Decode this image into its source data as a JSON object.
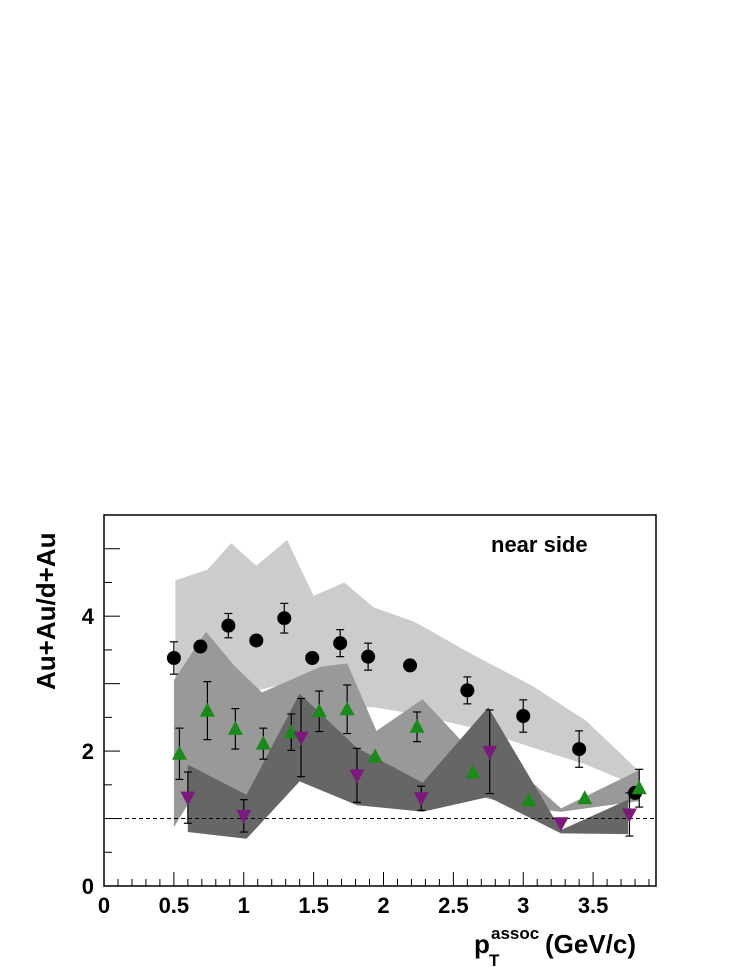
{
  "chart_data": {
    "type": "scatter",
    "title": "",
    "annotation": "near side",
    "xlabel": {
      "main": "p",
      "sub": "T",
      "sup": "assoc",
      "unit": " (GeV/c)"
    },
    "ylabel": "Au+Au/d+Au",
    "xlim": [
      0,
      3.95
    ],
    "ylim": [
      0,
      5.5
    ],
    "x_ticks": [
      0,
      0.5,
      1,
      1.5,
      2,
      2.5,
      3,
      3.5
    ],
    "x_tick_labels": [
      "0",
      "0.5",
      "1",
      "1.5",
      "2",
      "2.5",
      "3",
      "3.5"
    ],
    "y_ticks": [
      0,
      2,
      4
    ],
    "y_tick_labels": [
      "0",
      "2",
      "4"
    ],
    "reference_line": 1.0,
    "bands": [
      {
        "color": "#cccccc",
        "upper": [
          [
            0.51,
            4.53
          ],
          [
            0.74,
            4.69
          ],
          [
            0.91,
            5.08
          ],
          [
            1.09,
            4.75
          ],
          [
            1.31,
            5.13
          ],
          [
            1.5,
            4.3
          ],
          [
            1.72,
            4.5
          ],
          [
            1.93,
            4.13
          ],
          [
            2.22,
            3.92
          ],
          [
            2.63,
            3.44
          ],
          [
            3.07,
            2.96
          ],
          [
            3.45,
            2.45
          ],
          [
            3.83,
            1.7
          ]
        ],
        "lower": [
          [
            3.83,
            1.47
          ],
          [
            3.45,
            1.8
          ],
          [
            3.07,
            2.05
          ],
          [
            2.63,
            2.35
          ],
          [
            2.22,
            2.55
          ],
          [
            1.93,
            2.65
          ],
          [
            1.72,
            2.65
          ],
          [
            1.5,
            2.85
          ],
          [
            1.31,
            3.0
          ],
          [
            1.09,
            2.9
          ],
          [
            0.91,
            3.15
          ],
          [
            0.74,
            3.05
          ],
          [
            0.51,
            2.98
          ]
        ]
      },
      {
        "color": "#999999",
        "upper": [
          [
            0.5,
            3.05
          ],
          [
            0.73,
            3.77
          ],
          [
            0.93,
            3.27
          ],
          [
            1.13,
            2.87
          ],
          [
            1.33,
            3.05
          ],
          [
            1.55,
            3.25
          ],
          [
            1.74,
            3.3
          ],
          [
            1.95,
            2.3
          ],
          [
            2.28,
            2.77
          ],
          [
            2.65,
            1.95
          ],
          [
            3.02,
            1.62
          ],
          [
            3.27,
            1.15
          ],
          [
            3.83,
            1.72
          ]
        ],
        "lower": [
          [
            3.83,
            1.26
          ],
          [
            3.27,
            1.1
          ],
          [
            3.02,
            1.15
          ],
          [
            2.65,
            1.35
          ],
          [
            2.28,
            1.4
          ],
          [
            1.95,
            1.8
          ],
          [
            1.74,
            1.75
          ],
          [
            1.55,
            2.0
          ],
          [
            1.33,
            1.4
          ],
          [
            1.13,
            1.3
          ],
          [
            0.93,
            1.25
          ],
          [
            0.73,
            1.65
          ],
          [
            0.5,
            0.87
          ]
        ]
      },
      {
        "color": "#666666",
        "upper": [
          [
            0.6,
            1.8
          ],
          [
            1.02,
            1.35
          ],
          [
            1.4,
            2.85
          ],
          [
            1.81,
            2.05
          ],
          [
            2.28,
            1.53
          ],
          [
            2.75,
            2.65
          ],
          [
            3.27,
            0.83
          ],
          [
            3.75,
            1.28
          ]
        ],
        "lower": [
          [
            3.75,
            0.77
          ],
          [
            3.27,
            0.78
          ],
          [
            2.75,
            1.32
          ],
          [
            2.28,
            1.1
          ],
          [
            1.81,
            1.2
          ],
          [
            1.4,
            1.55
          ],
          [
            1.02,
            0.7
          ],
          [
            0.6,
            0.8
          ]
        ]
      }
    ],
    "series": [
      {
        "marker": "circle",
        "color": "#000000",
        "x": [
          0.5,
          0.69,
          0.89,
          1.09,
          1.29,
          1.49,
          1.69,
          1.89,
          2.19,
          2.6,
          3.0,
          3.4,
          3.8
        ],
        "y": [
          3.38,
          3.55,
          3.86,
          3.64,
          3.97,
          3.38,
          3.6,
          3.4,
          3.27,
          2.9,
          2.52,
          2.03,
          1.38
        ],
        "err": [
          0.24,
          0.0,
          0.18,
          0.0,
          0.22,
          0.0,
          0.2,
          0.2,
          0.0,
          0.2,
          0.24,
          0.27,
          0.0
        ]
      },
      {
        "marker": "triangle-up",
        "color": "#1a8a1a",
        "x": [
          0.54,
          0.74,
          0.94,
          1.14,
          1.34,
          1.54,
          1.74,
          1.94,
          2.24,
          2.64,
          3.04,
          3.44,
          3.83
        ],
        "y": [
          1.96,
          2.6,
          2.33,
          2.11,
          2.28,
          2.59,
          2.62,
          1.92,
          2.36,
          1.68,
          1.27,
          1.3,
          1.45
        ],
        "err": [
          0.38,
          0.43,
          0.3,
          0.23,
          0.27,
          0.3,
          0.36,
          0.0,
          0.22,
          0.0,
          0.0,
          0.0,
          0.28
        ]
      },
      {
        "marker": "triangle-down",
        "color": "#7b1a7b",
        "x": [
          0.6,
          1.0,
          1.41,
          1.81,
          2.27,
          2.76,
          3.27,
          3.76
        ],
        "y": [
          1.31,
          1.04,
          2.2,
          1.64,
          1.3,
          1.99,
          0.93,
          1.06
        ],
        "err": [
          0.38,
          0.24,
          0.58,
          0.4,
          0.18,
          0.62,
          0.0,
          0.32
        ]
      }
    ]
  }
}
